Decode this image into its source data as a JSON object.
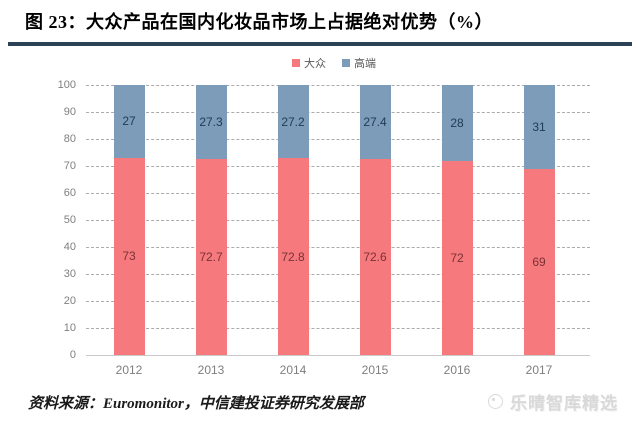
{
  "figure": {
    "title": "图 23：大众产品在国内化妆品市场上占据绝对优势（%）",
    "source": "资料来源：Euromonitor，中信建投证券研究发展部",
    "watermark": "乐晴智库精选"
  },
  "colors": {
    "mass_bar": "#f5797d",
    "premium_bar": "#7d9cb9",
    "mass_label": "#7a3235",
    "premium_label": "#1f3a54",
    "title_rule": "#2c4257",
    "gridline": "#ababab",
    "axis_text": "#7f7f7f",
    "watermark_text": "#d9d9d9"
  },
  "chart_data": {
    "type": "bar",
    "stacked": true,
    "categories": [
      "2012",
      "2013",
      "2014",
      "2015",
      "2016",
      "2017"
    ],
    "series": [
      {
        "name": "大众",
        "color_key": "mass_bar",
        "label_color_key": "mass_label",
        "values": [
          73,
          72.7,
          72.8,
          72.6,
          72,
          69
        ]
      },
      {
        "name": "高端",
        "color_key": "premium_bar",
        "label_color_key": "premium_label",
        "values": [
          27,
          27.3,
          27.2,
          27.4,
          28,
          31
        ]
      }
    ],
    "title": "",
    "xlabel": "",
    "ylabel": "",
    "ylim": [
      0,
      100
    ],
    "ytick_step": 10,
    "grid": true,
    "legend_position": "top-center",
    "data_labels": true
  }
}
